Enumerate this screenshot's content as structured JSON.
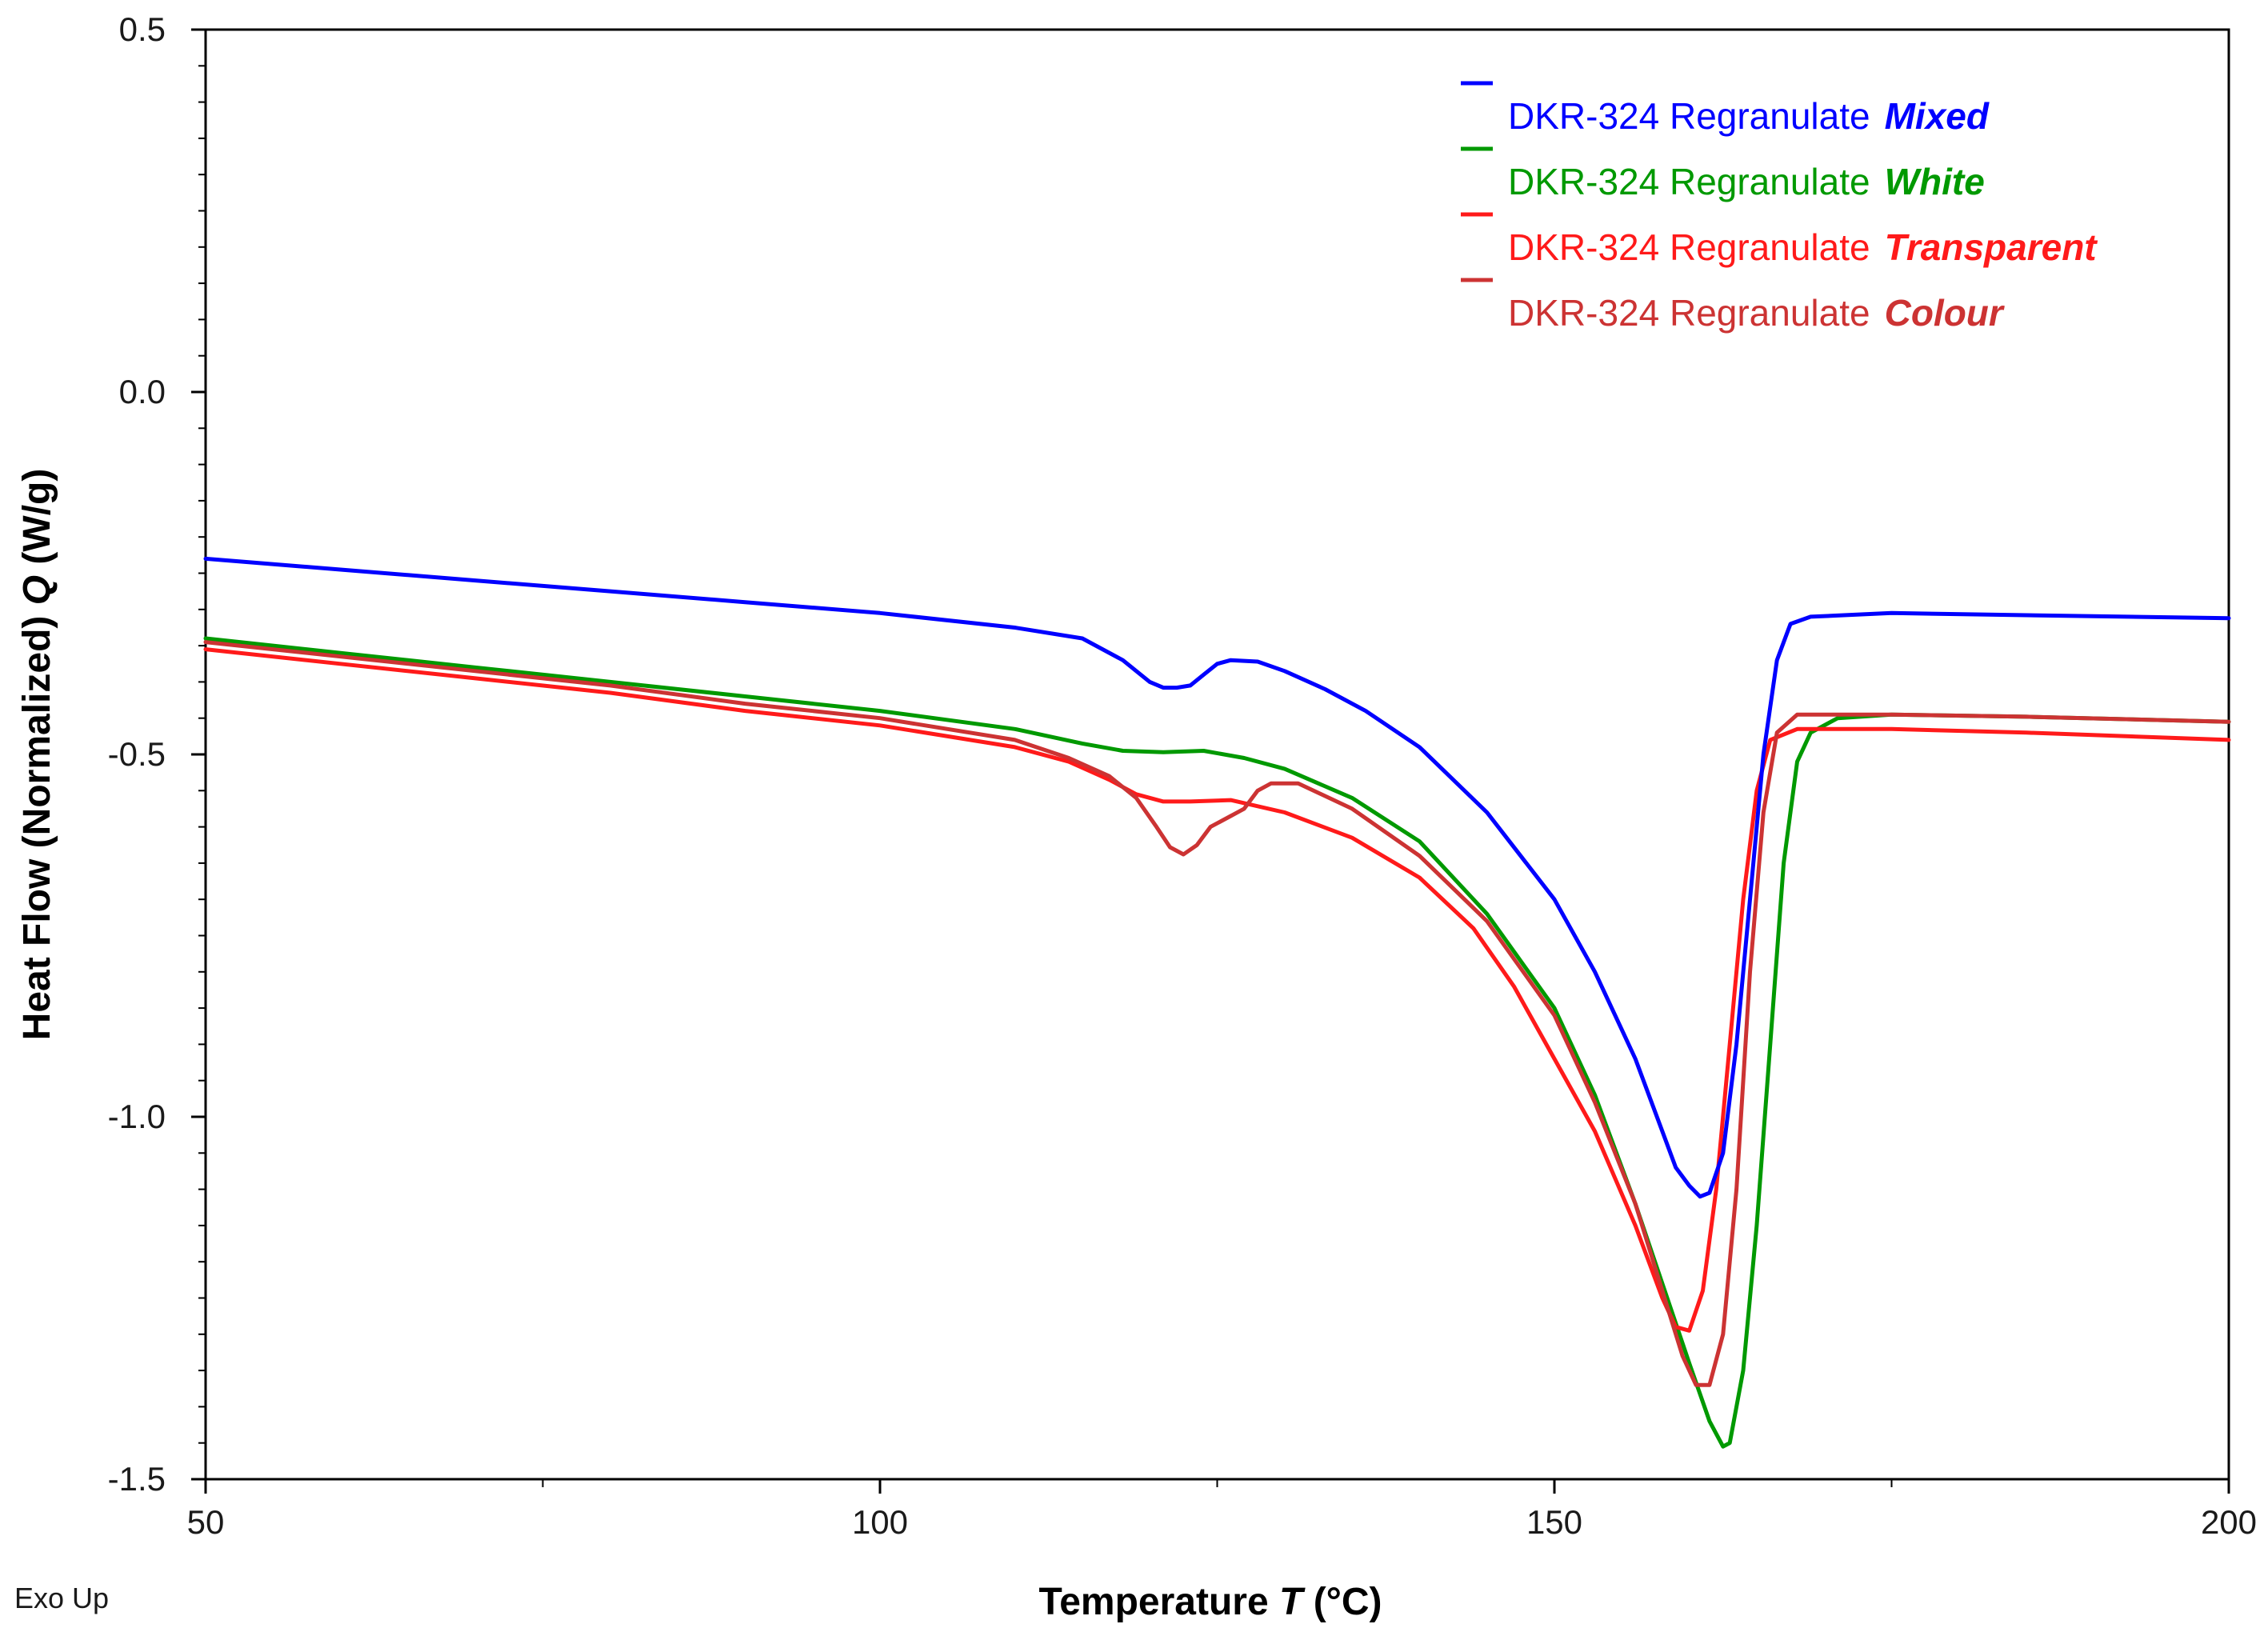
{
  "chart_data": {
    "type": "line",
    "xlabel": "Temperature",
    "xlabel_symbol": "T",
    "xlabel_unit": "(°C)",
    "ylabel": "Heat Flow (Normalized)",
    "ylabel_symbol": "Q",
    "ylabel_unit": "(W/g)",
    "xlim": [
      50,
      200
    ],
    "ylim": [
      -1.5,
      0.5
    ],
    "x_ticks": [
      50,
      100,
      150,
      200
    ],
    "x_tick_labels": [
      "50",
      "100",
      "150",
      "200"
    ],
    "x_minor_ticks": [
      75,
      125,
      175
    ],
    "y_ticks": [
      0.5,
      0.0,
      -0.5,
      -1.0,
      -1.5
    ],
    "y_tick_labels": [
      "0.5",
      "0.0",
      "-0.5",
      "-1.0",
      "-1.5"
    ],
    "grid": false,
    "legend_position": "top-right",
    "corner_note": "Exo Up",
    "series": [
      {
        "name": "DKR-324 Regranulate",
        "variant": "Mixed",
        "color": "#0000ff",
        "points": [
          [
            50,
            -0.23
          ],
          [
            60,
            -0.245
          ],
          [
            70,
            -0.26
          ],
          [
            80,
            -0.275
          ],
          [
            90,
            -0.29
          ],
          [
            100,
            -0.305
          ],
          [
            110,
            -0.325
          ],
          [
            115,
            -0.34
          ],
          [
            118,
            -0.37
          ],
          [
            120,
            -0.4
          ],
          [
            121,
            -0.408
          ],
          [
            122,
            -0.408
          ],
          [
            123,
            -0.405
          ],
          [
            124,
            -0.39
          ],
          [
            125,
            -0.375
          ],
          [
            126,
            -0.37
          ],
          [
            128,
            -0.372
          ],
          [
            130,
            -0.385
          ],
          [
            133,
            -0.41
          ],
          [
            136,
            -0.44
          ],
          [
            140,
            -0.49
          ],
          [
            145,
            -0.58
          ],
          [
            150,
            -0.7
          ],
          [
            153,
            -0.8
          ],
          [
            156,
            -0.92
          ],
          [
            158,
            -1.02
          ],
          [
            159,
            -1.07
          ],
          [
            160,
            -1.095
          ],
          [
            160.8,
            -1.11
          ],
          [
            161.5,
            -1.105
          ],
          [
            162.5,
            -1.05
          ],
          [
            163.5,
            -0.9
          ],
          [
            164.5,
            -0.7
          ],
          [
            165.5,
            -0.5
          ],
          [
            166.5,
            -0.37
          ],
          [
            167.5,
            -0.32
          ],
          [
            169,
            -0.31
          ],
          [
            175,
            -0.305
          ],
          [
            185,
            -0.308
          ],
          [
            200,
            -0.312
          ]
        ]
      },
      {
        "name": "DKR-324 Regranulate",
        "variant": "White",
        "color": "#009900",
        "points": [
          [
            50,
            -0.34
          ],
          [
            60,
            -0.36
          ],
          [
            70,
            -0.38
          ],
          [
            80,
            -0.4
          ],
          [
            90,
            -0.42
          ],
          [
            100,
            -0.44
          ],
          [
            110,
            -0.465
          ],
          [
            115,
            -0.485
          ],
          [
            118,
            -0.495
          ],
          [
            121,
            -0.497
          ],
          [
            124,
            -0.495
          ],
          [
            127,
            -0.505
          ],
          [
            130,
            -0.52
          ],
          [
            135,
            -0.56
          ],
          [
            140,
            -0.62
          ],
          [
            145,
            -0.72
          ],
          [
            150,
            -0.85
          ],
          [
            153,
            -0.97
          ],
          [
            156,
            -1.12
          ],
          [
            158,
            -1.23
          ],
          [
            160,
            -1.34
          ],
          [
            161.5,
            -1.42
          ],
          [
            162.5,
            -1.455
          ],
          [
            163,
            -1.45
          ],
          [
            164,
            -1.35
          ],
          [
            165,
            -1.15
          ],
          [
            166,
            -0.9
          ],
          [
            167,
            -0.65
          ],
          [
            168,
            -0.51
          ],
          [
            169,
            -0.47
          ],
          [
            171,
            -0.45
          ],
          [
            175,
            -0.445
          ],
          [
            185,
            -0.448
          ],
          [
            200,
            -0.455
          ]
        ]
      },
      {
        "name": "DKR-324 Regranulate",
        "variant": "Transparent",
        "color": "#ff1a1a",
        "points": [
          [
            50,
            -0.355
          ],
          [
            60,
            -0.375
          ],
          [
            70,
            -0.395
          ],
          [
            80,
            -0.415
          ],
          [
            90,
            -0.44
          ],
          [
            100,
            -0.46
          ],
          [
            110,
            -0.49
          ],
          [
            114,
            -0.51
          ],
          [
            117,
            -0.535
          ],
          [
            119,
            -0.555
          ],
          [
            121,
            -0.565
          ],
          [
            123,
            -0.565
          ],
          [
            126,
            -0.563
          ],
          [
            130,
            -0.58
          ],
          [
            135,
            -0.615
          ],
          [
            140,
            -0.67
          ],
          [
            144,
            -0.74
          ],
          [
            147,
            -0.82
          ],
          [
            150,
            -0.92
          ],
          [
            153,
            -1.02
          ],
          [
            156,
            -1.15
          ],
          [
            158,
            -1.25
          ],
          [
            159,
            -1.29
          ],
          [
            160,
            -1.295
          ],
          [
            161,
            -1.24
          ],
          [
            162,
            -1.1
          ],
          [
            163,
            -0.9
          ],
          [
            164,
            -0.7
          ],
          [
            165,
            -0.55
          ],
          [
            166,
            -0.48
          ],
          [
            168,
            -0.465
          ],
          [
            175,
            -0.465
          ],
          [
            185,
            -0.47
          ],
          [
            200,
            -0.48
          ]
        ]
      },
      {
        "name": "DKR-324 Regranulate",
        "variant": "Colour",
        "color": "#cc3333",
        "points": [
          [
            50,
            -0.345
          ],
          [
            60,
            -0.365
          ],
          [
            70,
            -0.385
          ],
          [
            80,
            -0.405
          ],
          [
            90,
            -0.43
          ],
          [
            100,
            -0.45
          ],
          [
            110,
            -0.48
          ],
          [
            114,
            -0.505
          ],
          [
            117,
            -0.53
          ],
          [
            119,
            -0.56
          ],
          [
            120.5,
            -0.6
          ],
          [
            121.5,
            -0.628
          ],
          [
            122.5,
            -0.638
          ],
          [
            123.5,
            -0.625
          ],
          [
            124.5,
            -0.6
          ],
          [
            126,
            -0.585
          ],
          [
            127,
            -0.575
          ],
          [
            128,
            -0.55
          ],
          [
            129,
            -0.54
          ],
          [
            131,
            -0.54
          ],
          [
            135,
            -0.575
          ],
          [
            140,
            -0.64
          ],
          [
            145,
            -0.73
          ],
          [
            150,
            -0.86
          ],
          [
            153,
            -0.98
          ],
          [
            156,
            -1.12
          ],
          [
            158,
            -1.24
          ],
          [
            159.5,
            -1.33
          ],
          [
            160.5,
            -1.37
          ],
          [
            161.5,
            -1.37
          ],
          [
            162.5,
            -1.3
          ],
          [
            163.5,
            -1.1
          ],
          [
            164.5,
            -0.8
          ],
          [
            165.5,
            -0.58
          ],
          [
            166.5,
            -0.47
          ],
          [
            168,
            -0.445
          ],
          [
            175,
            -0.445
          ],
          [
            185,
            -0.448
          ],
          [
            200,
            -0.455
          ]
        ]
      }
    ]
  }
}
